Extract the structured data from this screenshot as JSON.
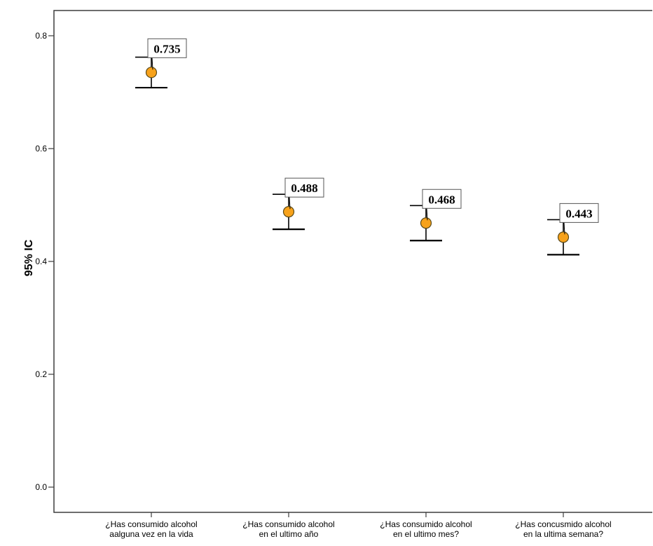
{
  "chart_data": {
    "type": "scatter",
    "title": "",
    "xlabel": "",
    "ylabel": "95% IC",
    "ylim": [
      0.0,
      0.8
    ],
    "yticks": [
      "0.0",
      "0.2",
      "0.4",
      "0.6",
      "0.8"
    ],
    "grid": false,
    "categories": [
      [
        "¿Has consumido alcohol",
        "aalguna vez en la vida"
      ],
      [
        "¿Has consumido alcohol",
        "en el ultimo año"
      ],
      [
        "¿Has consumido alcohol",
        "en el ultimo mes?"
      ],
      [
        "¿Has concusmido alcohol",
        "en la ultima semana?"
      ]
    ],
    "points": [
      {
        "value": 0.735,
        "label": "0.735",
        "ci_low": 0.708,
        "ci_high": 0.762
      },
      {
        "value": 0.488,
        "label": "0.488",
        "ci_low": 0.457,
        "ci_high": 0.519
      },
      {
        "value": 0.468,
        "label": "0.468",
        "ci_low": 0.437,
        "ci_high": 0.499
      },
      {
        "value": 0.443,
        "label": "0.443",
        "ci_low": 0.412,
        "ci_high": 0.474
      }
    ],
    "colors": {
      "marker_fill": "#f7a21b",
      "marker_stroke": "#5a4a1a",
      "axis": "#3d3d3d"
    }
  }
}
